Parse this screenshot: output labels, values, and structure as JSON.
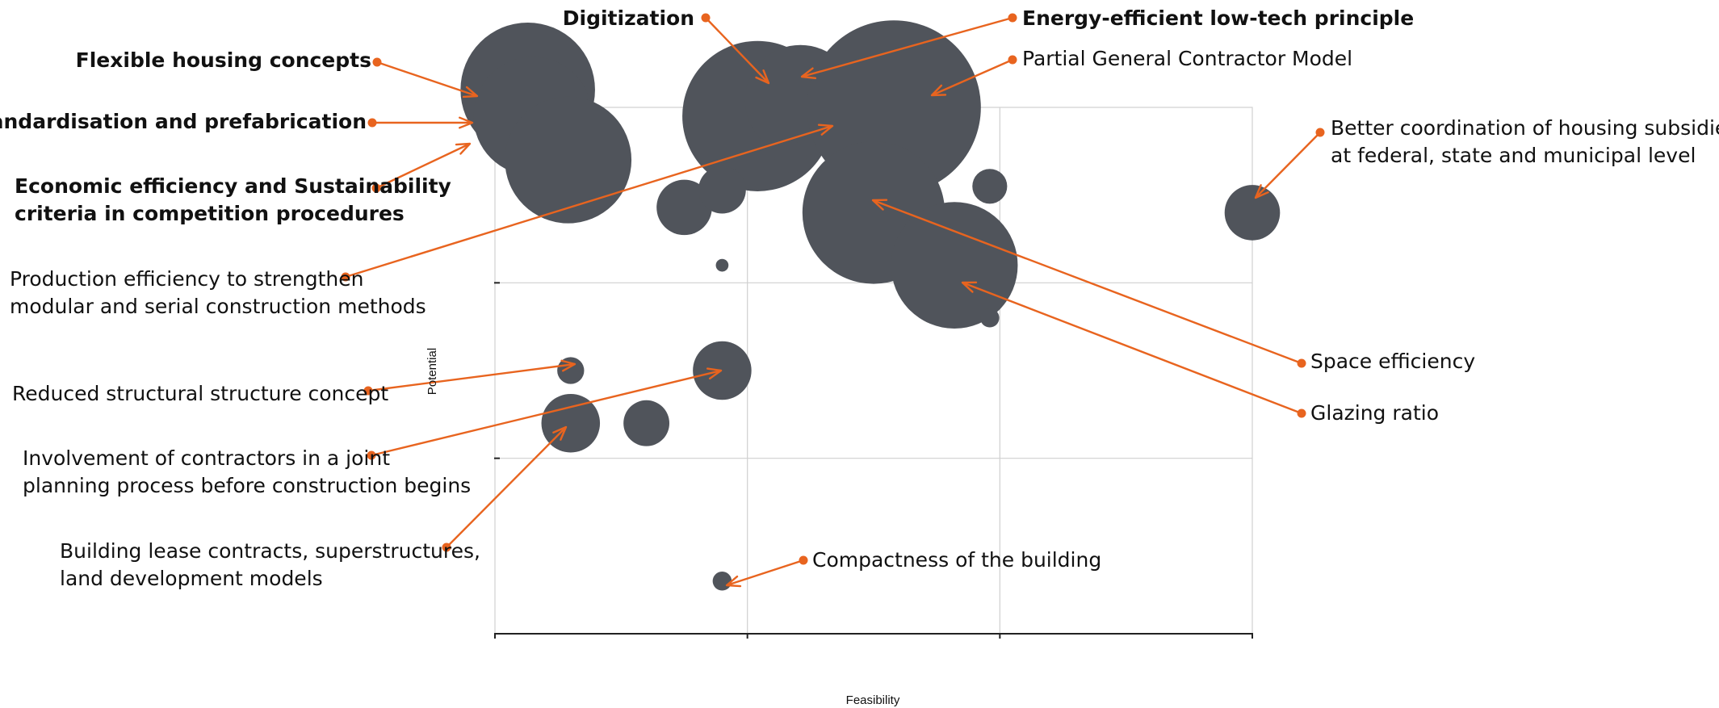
{
  "chart_data": {
    "type": "scatter",
    "variant": "bubble",
    "xlabel": "Feasibility",
    "ylabel": "Potential",
    "grid": true,
    "xlim": [
      0,
      3
    ],
    "ylim": [
      0,
      3
    ],
    "colors": {
      "bubble": "#50545b",
      "callout": "#e8641f",
      "grid": "#d0d0d0",
      "axis": "#222222",
      "text": "#111111"
    },
    "points": [
      {
        "x": 0.13,
        "y": 3.1,
        "size": 8.5
      },
      {
        "x": 0.15,
        "y": 2.95,
        "size": 7.5
      },
      {
        "x": 0.29,
        "y": 2.7,
        "size": 8.0
      },
      {
        "x": 1.04,
        "y": 2.95,
        "size": 9.5
      },
      {
        "x": 1.21,
        "y": 3.04,
        "size": 7.0
      },
      {
        "x": 1.17,
        "y": 2.72,
        "size": 2.0
      },
      {
        "x": 1.58,
        "y": 3.0,
        "size": 11.0
      },
      {
        "x": 1.5,
        "y": 2.4,
        "size": 9.0
      },
      {
        "x": 1.82,
        "y": 2.1,
        "size": 8.0
      },
      {
        "x": 0.75,
        "y": 2.43,
        "size": 3.5
      },
      {
        "x": 0.9,
        "y": 2.53,
        "size": 3.0
      },
      {
        "x": 0.9,
        "y": 2.1,
        "size": 0.8
      },
      {
        "x": 1.96,
        "y": 2.55,
        "size": 2.2
      },
      {
        "x": 1.96,
        "y": 1.8,
        "size": 1.2
      },
      {
        "x": 3.0,
        "y": 2.4,
        "size": 3.5
      },
      {
        "x": 0.3,
        "y": 1.5,
        "size": 1.7
      },
      {
        "x": 0.3,
        "y": 1.2,
        "size": 3.7
      },
      {
        "x": 0.6,
        "y": 1.2,
        "size": 2.9
      },
      {
        "x": 0.9,
        "y": 1.5,
        "size": 3.7
      },
      {
        "x": 0.9,
        "y": 0.3,
        "size": 1.2
      }
    ],
    "annotations": [
      {
        "lines": [
          "Digitization"
        ],
        "bold": true
      },
      {
        "lines": [
          "Energy-efficient low-tech principle"
        ],
        "bold": true
      },
      {
        "lines": [
          "Partial General Contractor Model"
        ],
        "bold": false
      },
      {
        "lines": [
          "Flexible housing concepts"
        ],
        "bold": true
      },
      {
        "lines": [
          "Standardisation and prefabrication"
        ],
        "bold": true
      },
      {
        "lines": [
          "Economic efficiency and Sustainability",
          "criteria in competition procedures"
        ],
        "bold": true
      },
      {
        "lines": [
          "Production efficiency to strengthen",
          "modular and serial construction methods"
        ],
        "bold": false
      },
      {
        "lines": [
          "Better coordination of housing subsidies",
          "at federal, state and municipal level"
        ],
        "bold": false
      },
      {
        "lines": [
          "Space efficiency"
        ],
        "bold": false
      },
      {
        "lines": [
          "Glazing ratio"
        ],
        "bold": false
      },
      {
        "lines": [
          "Reduced structural structure concept"
        ],
        "bold": false
      },
      {
        "lines": [
          "Involvement of contractors in a joint",
          "planning process before construction begins"
        ],
        "bold": false
      },
      {
        "lines": [
          "Building lease contracts, superstructures,",
          "land development models"
        ],
        "bold": false
      },
      {
        "lines": [
          "Compactness of the building"
        ],
        "bold": false
      }
    ]
  }
}
